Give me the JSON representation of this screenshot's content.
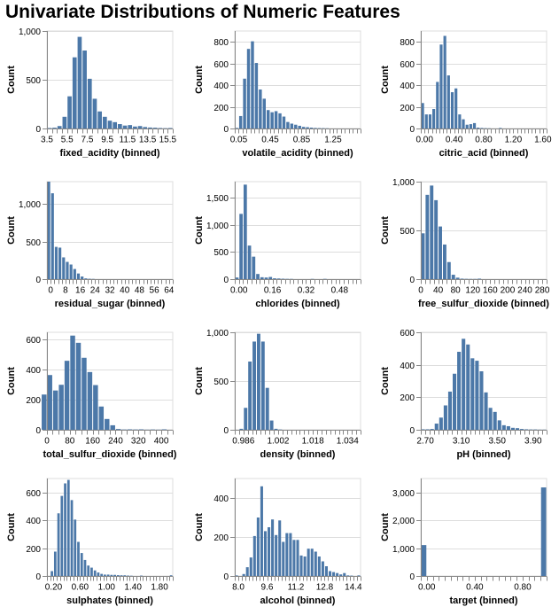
{
  "title": "Univariate Distributions of Numeric Features",
  "colors": {
    "bar": "#4c78a8",
    "grid": "#dddddd",
    "axis": "#888888",
    "text": "#000000"
  },
  "chart_data": [
    {
      "type": "bar",
      "title": "",
      "xlabel": "fixed_acidity (binned)",
      "ylabel": "Count",
      "xlim": [
        3.5,
        16.0
      ],
      "ylim": [
        0,
        1000
      ],
      "yticks": [
        0,
        500,
        1000
      ],
      "ytick_labels": [
        "0",
        "500",
        "1,000"
      ],
      "xticks": [
        3.5,
        5.5,
        7.5,
        9.5,
        11.5,
        13.5,
        15.5
      ],
      "xtick_labels": [
        "3.5",
        "5.5",
        "7.5",
        "9.5",
        "11.5",
        "13.5",
        "15.5"
      ],
      "minor_step": 0.5,
      "bin_width": 0.5,
      "bin_start": [
        3.5,
        4.0,
        4.5,
        5.0,
        5.5,
        6.0,
        6.5,
        7.0,
        7.5,
        8.0,
        8.5,
        9.0,
        9.5,
        10.0,
        10.5,
        11.0,
        11.5,
        12.0,
        12.5,
        13.0,
        13.5,
        14.0,
        14.5,
        15.0,
        15.5
      ],
      "values": [
        5,
        8,
        25,
        120,
        330,
        730,
        940,
        800,
        510,
        305,
        175,
        120,
        80,
        65,
        45,
        30,
        35,
        20,
        25,
        15,
        10,
        8,
        5,
        3,
        5
      ]
    },
    {
      "type": "bar",
      "xlabel": "volatile_acidity (binned)",
      "ylabel": "Count",
      "xlim": [
        0.0,
        1.6
      ],
      "ylim": [
        0,
        900
      ],
      "yticks": [
        0,
        200,
        400,
        600,
        800
      ],
      "ytick_labels": [
        "0",
        "200",
        "400",
        "600",
        "800"
      ],
      "xticks": [
        0.05,
        0.45,
        0.85,
        1.25
      ],
      "xtick_labels": [
        "0.05",
        "0.45",
        "0.85",
        "1.25"
      ],
      "minor_step": 0.05,
      "bin_width": 0.05,
      "bin_start": [
        0.0,
        0.05,
        0.1,
        0.15,
        0.2,
        0.25,
        0.3,
        0.35,
        0.4,
        0.45,
        0.5,
        0.55,
        0.6,
        0.65,
        0.7,
        0.75,
        0.8,
        0.85,
        0.9,
        0.95,
        1.0,
        1.05,
        1.1,
        1.15
      ],
      "values": [
        5,
        115,
        460,
        735,
        805,
        605,
        360,
        275,
        170,
        150,
        160,
        140,
        110,
        60,
        45,
        35,
        25,
        15,
        12,
        8,
        5,
        4,
        3,
        2
      ]
    },
    {
      "type": "bar",
      "xlabel": "citric_acid (binned)",
      "ylabel": "Count",
      "xlim": [
        -0.05,
        1.65
      ],
      "ylim": [
        0,
        900
      ],
      "yticks": [
        0,
        200,
        400,
        600,
        800
      ],
      "ytick_labels": [
        "0",
        "200",
        "400",
        "600",
        "800"
      ],
      "xticks": [
        0.0,
        0.4,
        0.8,
        1.2,
        1.6
      ],
      "xtick_labels": [
        "0.00",
        "0.40",
        "0.80",
        "1.20",
        "1.60"
      ],
      "minor_step": 0.05,
      "bin_width": 0.05,
      "bin_start": [
        -0.05,
        0.0,
        0.05,
        0.1,
        0.15,
        0.2,
        0.25,
        0.3,
        0.35,
        0.4,
        0.45,
        0.5,
        0.55,
        0.6,
        0.65,
        0.7,
        0.75,
        0.8,
        0.85,
        0.95,
        1.0
      ],
      "values": [
        235,
        130,
        130,
        180,
        430,
        775,
        855,
        490,
        335,
        370,
        130,
        85,
        35,
        40,
        50,
        8,
        5,
        3,
        2,
        0,
        5
      ]
    },
    {
      "type": "bar",
      "xlabel": "residual_sugar (binned)",
      "ylabel": "Count",
      "xlim": [
        -2,
        66
      ],
      "ylim": [
        0,
        1300
      ],
      "yticks": [
        0,
        500,
        1000
      ],
      "ytick_labels": [
        "0",
        "500",
        "1,000"
      ],
      "xticks": [
        0,
        8,
        16,
        24,
        32,
        40,
        48,
        56,
        64
      ],
      "xtick_labels": [
        "0",
        "8",
        "16",
        "24",
        "32",
        "40",
        "48",
        "56",
        "64"
      ],
      "minor_step": 2,
      "bin_width": 2,
      "bin_start": [
        -2,
        0,
        2,
        4,
        6,
        8,
        10,
        12,
        14,
        16,
        18,
        20,
        22
      ],
      "values": [
        1300,
        1145,
        430,
        420,
        290,
        230,
        195,
        135,
        75,
        35,
        10,
        5,
        3
      ]
    },
    {
      "type": "bar",
      "xlabel": "chlorides (binned)",
      "ylabel": "Count",
      "xlim": [
        -0.02,
        0.58
      ],
      "ylim": [
        0,
        1800
      ],
      "yticks": [
        0,
        500,
        1000,
        1500
      ],
      "ytick_labels": [
        "0",
        "500",
        "1,000",
        "1,500"
      ],
      "xticks": [
        0.0,
        0.16,
        0.32,
        0.48
      ],
      "xtick_labels": [
        "0.00",
        "0.16",
        "0.32",
        "0.48"
      ],
      "minor_step": 0.02,
      "bin_width": 0.02,
      "bin_start": [
        -0.02,
        0.0,
        0.02,
        0.04,
        0.06,
        0.08,
        0.1,
        0.12,
        0.14,
        0.16,
        0.18,
        0.2,
        0.22,
        0.24,
        0.34,
        0.4
      ],
      "values": [
        30,
        1205,
        1745,
        620,
        415,
        95,
        35,
        30,
        40,
        15,
        12,
        8,
        5,
        4,
        4,
        5
      ]
    },
    {
      "type": "bar",
      "xlabel": "free_sulfur_dioxide (binned)",
      "ylabel": "Count",
      "xlim": [
        0,
        290
      ],
      "ylim": [
        0,
        1000
      ],
      "yticks": [
        0,
        500,
        1000
      ],
      "ytick_labels": [
        "0",
        "500",
        "1,000"
      ],
      "xticks": [
        0,
        40,
        80,
        120,
        160,
        200,
        240,
        280
      ],
      "xtick_labels": [
        "0",
        "40",
        "80",
        "120",
        "160",
        "200",
        "240",
        "280"
      ],
      "minor_step": 10,
      "bin_width": 10,
      "bin_start": [
        0,
        10,
        20,
        30,
        40,
        50,
        60,
        70,
        80,
        90,
        100,
        110,
        120,
        130
      ],
      "values": [
        470,
        865,
        960,
        810,
        540,
        355,
        175,
        45,
        15,
        5,
        3,
        2,
        2,
        5
      ]
    },
    {
      "type": "bar",
      "xlabel": "total_sulfur_dioxide (binned)",
      "ylabel": "Count",
      "xlim": [
        0,
        440
      ],
      "ylim": [
        0,
        650
      ],
      "yticks": [
        0,
        200,
        400,
        600
      ],
      "ytick_labels": [
        "0",
        "200",
        "400",
        "600"
      ],
      "xticks": [
        0,
        80,
        160,
        240,
        320,
        400
      ],
      "xtick_labels": [
        "0",
        "80",
        "160",
        "240",
        "320",
        "400"
      ],
      "minor_step": 20,
      "bin_width": 20,
      "bin_start": [
        -20,
        0,
        20,
        40,
        60,
        80,
        100,
        120,
        140,
        160,
        180,
        200,
        220,
        240,
        260,
        280,
        300,
        320,
        340,
        360,
        380,
        400
      ],
      "values": [
        235,
        365,
        262,
        300,
        460,
        628,
        580,
        480,
        385,
        298,
        155,
        72,
        30,
        5,
        2,
        3,
        2,
        3,
        1,
        2,
        1,
        3
      ]
    },
    {
      "type": "bar",
      "xlabel": "density (binned)",
      "ylabel": "Count",
      "xlim": [
        0.982,
        1.04
      ],
      "ylim": [
        0,
        1000
      ],
      "yticks": [
        0,
        500,
        1000
      ],
      "ytick_labels": [
        "0",
        "500",
        "1,000"
      ],
      "xticks": [
        0.986,
        1.002,
        1.018,
        1.034
      ],
      "xtick_labels": [
        "0.986",
        "1.002",
        "1.018",
        "1.034"
      ],
      "minor_step": 0.002,
      "bin_width": 0.002,
      "bin_start": [
        0.984,
        0.986,
        0.988,
        0.99,
        0.992,
        0.994,
        0.996,
        0.998,
        1.0,
        1.002
      ],
      "values": [
        10,
        225,
        700,
        905,
        985,
        905,
        430,
        95,
        10,
        3
      ]
    },
    {
      "type": "bar",
      "xlabel": "pH (binned)",
      "ylabel": "Count",
      "xlim": [
        2.65,
        4.05
      ],
      "ylim": [
        0,
        600
      ],
      "yticks": [
        0,
        200,
        400,
        600
      ],
      "ytick_labels": [
        "0",
        "200",
        "400",
        "600"
      ],
      "xticks": [
        2.7,
        3.1,
        3.5,
        3.9
      ],
      "xtick_labels": [
        "2.70",
        "3.10",
        "3.50",
        "3.90"
      ],
      "minor_step": 0.05,
      "bin_width": 0.05,
      "bin_start": [
        2.65,
        2.7,
        2.75,
        2.8,
        2.85,
        2.9,
        2.95,
        3.0,
        3.05,
        3.1,
        3.15,
        3.2,
        3.25,
        3.3,
        3.35,
        3.4,
        3.45,
        3.5,
        3.55,
        3.6,
        3.65,
        3.7,
        3.75,
        3.8,
        3.85,
        3.9,
        3.95,
        4.0
      ],
      "values": [
        3,
        3,
        5,
        38,
        75,
        150,
        235,
        345,
        480,
        560,
        525,
        440,
        425,
        360,
        230,
        135,
        110,
        58,
        28,
        22,
        12,
        10,
        5,
        3,
        2,
        2,
        1,
        1
      ]
    },
    {
      "type": "bar",
      "xlabel": "sulphates (binned)",
      "ylabel": "Count",
      "xlim": [
        0.1,
        2.0
      ],
      "ylim": [
        0,
        700
      ],
      "yticks": [
        0,
        200,
        400,
        600
      ],
      "ytick_labels": [
        "0",
        "200",
        "400",
        "600"
      ],
      "xticks": [
        0.2,
        0.6,
        1.0,
        1.4,
        1.8
      ],
      "xtick_labels": [
        "0.20",
        "0.60",
        "1.00",
        "1.40",
        "1.80"
      ],
      "minor_step": 0.05,
      "bin_width": 0.05,
      "bin_start": [
        0.15,
        0.2,
        0.25,
        0.3,
        0.35,
        0.4,
        0.45,
        0.5,
        0.55,
        0.6,
        0.65,
        0.7,
        0.75,
        0.8,
        0.85,
        0.9,
        0.95,
        1.0,
        1.05,
        1.1,
        1.15,
        1.2,
        1.25,
        1.3,
        1.35,
        1.5,
        1.95
      ],
      "values": [
        35,
        175,
        450,
        575,
        665,
        690,
        545,
        405,
        245,
        165,
        115,
        75,
        60,
        40,
        25,
        15,
        10,
        10,
        8,
        8,
        6,
        5,
        5,
        3,
        2,
        3,
        5
      ]
    },
    {
      "type": "bar",
      "xlabel": "alcohol (binned)",
      "ylabel": "Count",
      "xlim": [
        7.8,
        14.8
      ],
      "ylim": [
        0,
        500
      ],
      "yticks": [
        0,
        200,
        400
      ],
      "ytick_labels": [
        "0",
        "200",
        "400"
      ],
      "xticks": [
        8.0,
        9.6,
        11.2,
        12.8,
        14.4
      ],
      "xtick_labels": [
        "8.0",
        "9.6",
        "11.2",
        "12.8",
        "14.4"
      ],
      "minor_step": 0.2,
      "bin_width": 0.2,
      "bin_start": [
        7.8,
        8.0,
        8.2,
        8.4,
        8.6,
        8.8,
        9.0,
        9.2,
        9.4,
        9.6,
        9.8,
        10.0,
        10.2,
        10.4,
        10.6,
        10.8,
        11.0,
        11.2,
        11.4,
        11.6,
        11.8,
        12.0,
        12.2,
        12.4,
        12.6,
        12.8,
        13.0,
        13.2,
        13.4,
        13.6,
        13.8,
        14.0,
        14.2,
        14.6
      ],
      "values": [
        3,
        0,
        10,
        45,
        95,
        205,
        300,
        460,
        230,
        250,
        290,
        210,
        285,
        175,
        220,
        220,
        185,
        185,
        105,
        100,
        140,
        140,
        125,
        100,
        75,
        50,
        25,
        20,
        15,
        8,
        15,
        3,
        2,
        3
      ]
    },
    {
      "type": "bar",
      "xlabel": "target (binned)",
      "ylabel": "Count",
      "xlim": [
        -0.05,
        1.0
      ],
      "ylim": [
        0,
        3500
      ],
      "yticks": [
        0,
        1000,
        2000,
        3000
      ],
      "ytick_labels": [
        "0",
        "1,000",
        "2,000",
        "3,000"
      ],
      "xticks": [
        0.0,
        0.4,
        0.8
      ],
      "xtick_labels": [
        "0.00",
        "0.40",
        "0.80"
      ],
      "minor_step": 0.05,
      "bin_width": 0.05,
      "bin_start": [
        -0.05,
        0.95
      ],
      "values": [
        1110,
        3180
      ]
    }
  ]
}
